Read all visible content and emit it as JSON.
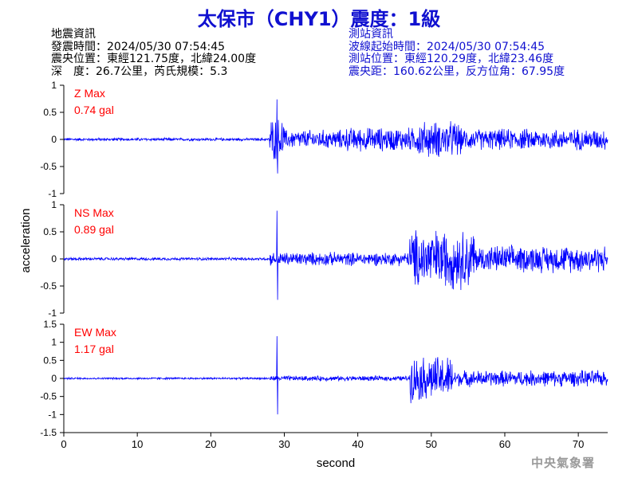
{
  "title": "太保市（CHY1）震度：1級",
  "event_info": {
    "heading": "地震資訊",
    "origin_time": "發震時間：2024/05/30 07:54:45",
    "epicenter": "震央位置：東經121.75度，北緯24.00度",
    "depth_magnitude": "深　度：26.7公里，芮氏規模：5.3"
  },
  "station_info": {
    "heading": "測站資訊",
    "start_time": "波線起始時間：2024/05/30 07:54:45",
    "location": "測站位置：東經120.29度，北緯23.46度",
    "distance": "震央距：160.62公里，反方位角：67.95度"
  },
  "footer": "中央氣象署",
  "colors": {
    "title": "#1010d0",
    "trace": "#0000ff",
    "max_label": "#ff0000",
    "axis": "#000000"
  },
  "chart_data": [
    {
      "type": "line",
      "component": "Z",
      "max_label": "Z Max",
      "max_value": "0.74 gal",
      "ylabel": "acceleration",
      "xlabel": "",
      "xlim": [
        0,
        74
      ],
      "ylim": [
        -1,
        1
      ],
      "yticks": [
        "-1",
        "-0.5",
        "0",
        "0.5",
        "1"
      ],
      "series": [
        {
          "noise_amplitude": 0.02,
          "segments": [
            {
              "t0": 0,
              "t1": 28,
              "amp": 0.03
            },
            {
              "t0": 28,
              "t1": 30,
              "amp": 0.45
            },
            {
              "t0": 30,
              "t1": 38,
              "amp": 0.2
            },
            {
              "t0": 38,
              "t1": 48,
              "amp": 0.25
            },
            {
              "t0": 48,
              "t1": 54,
              "amp": 0.38
            },
            {
              "t0": 54,
              "t1": 74,
              "amp": 0.22
            }
          ],
          "peak": 0.74
        }
      ]
    },
    {
      "type": "line",
      "component": "NS",
      "max_label": "NS Max",
      "max_value": "0.89 gal",
      "ylabel": "acceleration",
      "xlabel": "",
      "xlim": [
        0,
        74
      ],
      "ylim": [
        -1,
        1
      ],
      "yticks": [
        "-1",
        "-0.5",
        "0",
        "0.5",
        "1"
      ],
      "series": [
        {
          "noise_amplitude": 0.02,
          "segments": [
            {
              "t0": 0,
              "t1": 28,
              "amp": 0.03
            },
            {
              "t0": 28,
              "t1": 47,
              "amp": 0.14
            },
            {
              "t0": 47,
              "t1": 56,
              "amp": 0.62
            },
            {
              "t0": 56,
              "t1": 74,
              "amp": 0.28
            }
          ],
          "peak": 0.89
        }
      ]
    },
    {
      "type": "line",
      "component": "EW",
      "max_label": "EW Max",
      "max_value": "1.17 gal",
      "ylabel": "acceleration",
      "xlabel": "second",
      "xlim": [
        0,
        74
      ],
      "ylim": [
        -1.5,
        1.5
      ],
      "yticks": [
        "-1.5",
        "-1",
        "-0.5",
        "0",
        "0.5",
        "1",
        "1.5"
      ],
      "xticks": [
        "0",
        "10",
        "20",
        "30",
        "40",
        "50",
        "60",
        "70"
      ],
      "series": [
        {
          "noise_amplitude": 0.02,
          "segments": [
            {
              "t0": 0,
              "t1": 28,
              "amp": 0.03
            },
            {
              "t0": 28,
              "t1": 47,
              "amp": 0.08
            },
            {
              "t0": 47,
              "t1": 53,
              "amp": 0.7
            },
            {
              "t0": 53,
              "t1": 74,
              "amp": 0.25
            }
          ],
          "peak": 1.17
        }
      ]
    }
  ]
}
